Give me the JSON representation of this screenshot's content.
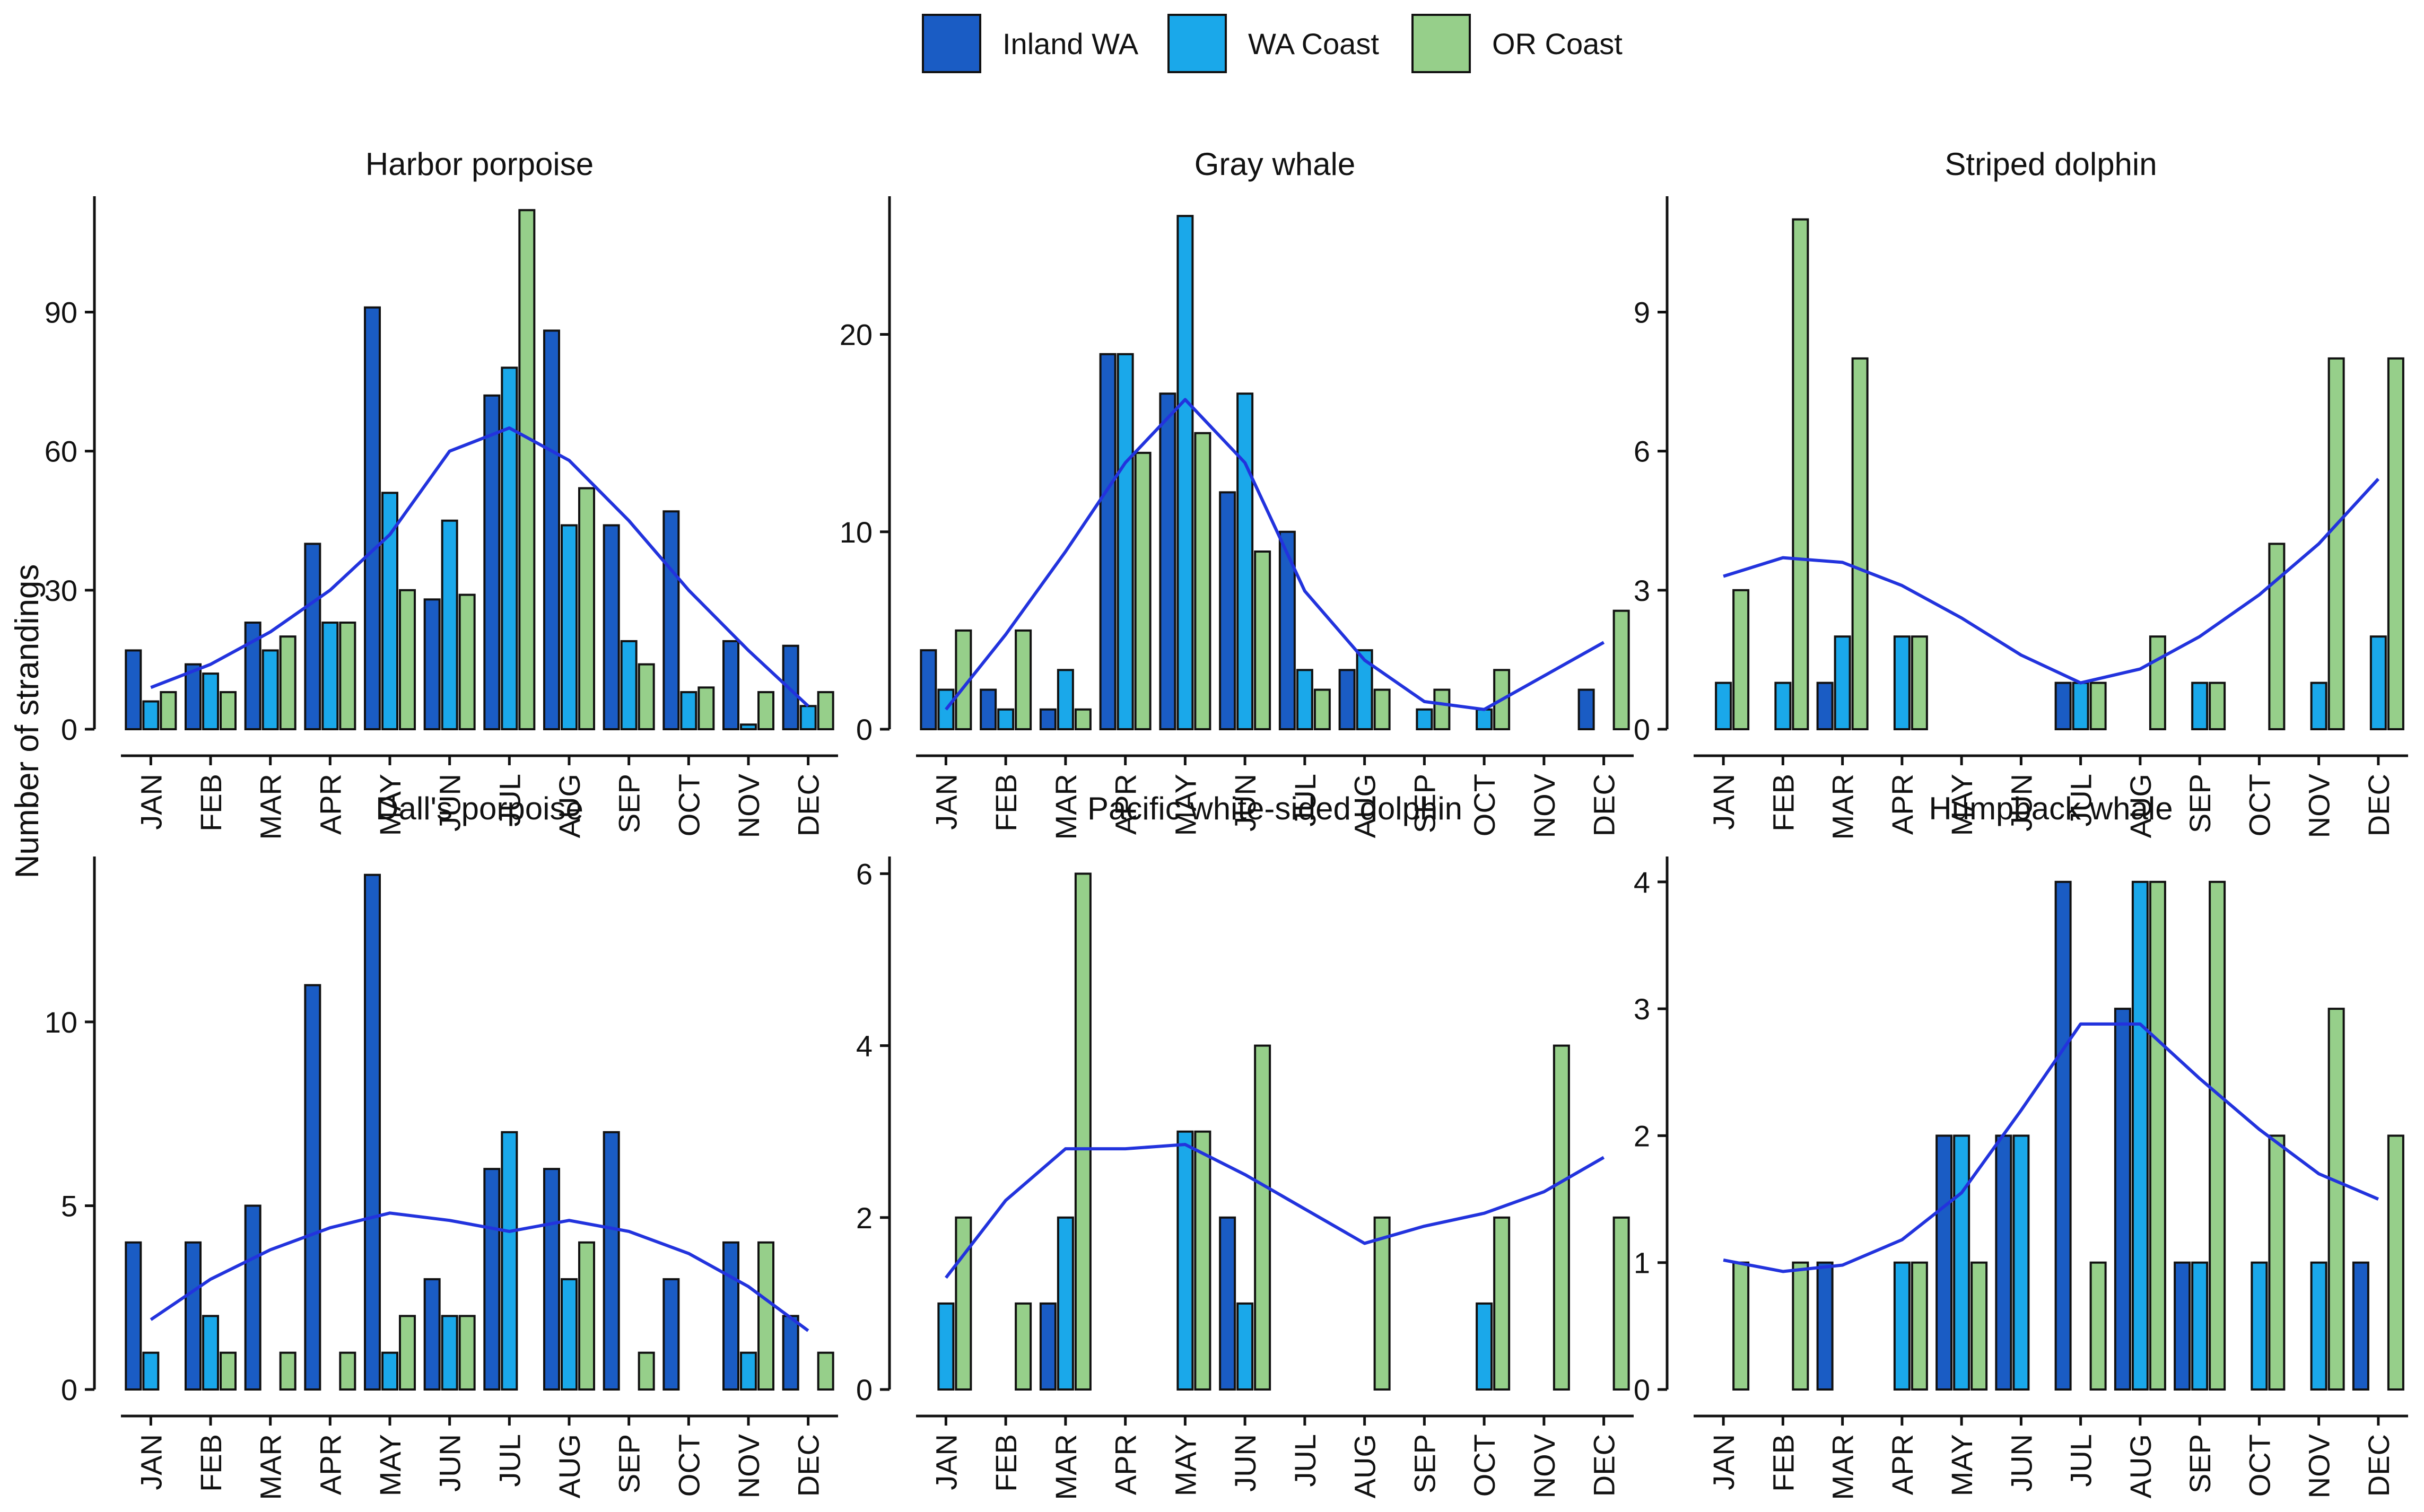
{
  "figure": {
    "ylabel": "Number of strandings",
    "legend_position": "top-center"
  },
  "legend": [
    {
      "name": "Inland WA",
      "color": "#1a5cc4"
    },
    {
      "name": "WA Coast",
      "color": "#1aa8ea"
    },
    {
      "name": "OR Coast",
      "color": "#96cf8a"
    }
  ],
  "colors": {
    "bar_outline": "#111111",
    "trend_line": "#2233dd",
    "axis": "#111111"
  },
  "chart_data": [
    {
      "type": "bar",
      "title": "Harbor porpoise",
      "categories": [
        "JAN",
        "FEB",
        "MAR",
        "APR",
        "MAY",
        "JUN",
        "JUL",
        "AUG",
        "SEP",
        "OCT",
        "NOV",
        "DEC"
      ],
      "ylim": [
        0,
        115
      ],
      "yticks": [
        0,
        30,
        60,
        90
      ],
      "series": [
        {
          "name": "Inland WA",
          "values": [
            17,
            14,
            23,
            40,
            91,
            28,
            72,
            86,
            44,
            47,
            19,
            18
          ]
        },
        {
          "name": "WA Coast",
          "values": [
            6,
            12,
            17,
            23,
            51,
            45,
            78,
            44,
            19,
            8,
            1,
            5
          ]
        },
        {
          "name": "OR Coast",
          "values": [
            8,
            8,
            20,
            23,
            30,
            29,
            112,
            52,
            14,
            9,
            8,
            8
          ]
        }
      ],
      "trend": [
        9,
        14,
        21,
        30,
        42,
        60,
        65,
        58,
        45,
        30,
        17,
        5
      ]
    },
    {
      "type": "bar",
      "title": "Gray whale",
      "categories": [
        "JAN",
        "FEB",
        "MAR",
        "APR",
        "MAY",
        "JUN",
        "JUL",
        "AUG",
        "SEP",
        "OCT",
        "NOV",
        "DEC"
      ],
      "ylim": [
        0,
        27
      ],
      "yticks": [
        0,
        10,
        20
      ],
      "series": [
        {
          "name": "Inland WA",
          "values": [
            4,
            2,
            1,
            19,
            17,
            12,
            10,
            3,
            0,
            0,
            0,
            2
          ]
        },
        {
          "name": "WA Coast",
          "values": [
            2,
            1,
            3,
            19,
            26,
            17,
            3,
            4,
            1,
            1,
            0,
            0
          ]
        },
        {
          "name": "OR Coast",
          "values": [
            5,
            5,
            1,
            14,
            15,
            9,
            2,
            2,
            2,
            3,
            0,
            6
          ]
        }
      ],
      "trend": [
        1,
        4.8,
        9,
        13.5,
        16.7,
        13.5,
        7,
        3.5,
        1.4,
        1,
        2.7,
        4.4
      ]
    },
    {
      "type": "bar",
      "title": "Striped dolphin",
      "categories": [
        "JAN",
        "FEB",
        "MAR",
        "APR",
        "MAY",
        "JUN",
        "JUL",
        "AUG",
        "SEP",
        "OCT",
        "NOV",
        "DEC"
      ],
      "ylim": [
        0,
        11.5
      ],
      "yticks": [
        0,
        3,
        6,
        9
      ],
      "series": [
        {
          "name": "Inland WA",
          "values": [
            0,
            0,
            1,
            0,
            0,
            0,
            1,
            0,
            0,
            0,
            0,
            0
          ]
        },
        {
          "name": "WA Coast",
          "values": [
            1,
            1,
            2,
            2,
            0,
            0,
            1,
            0,
            1,
            0,
            1,
            2
          ]
        },
        {
          "name": "OR Coast",
          "values": [
            3,
            11,
            8,
            2,
            0,
            0,
            1,
            2,
            1,
            4,
            8,
            8
          ]
        }
      ],
      "trend": [
        3.3,
        3.7,
        3.6,
        3.1,
        2.4,
        1.6,
        1,
        1.3,
        2,
        2.9,
        4,
        5.4
      ]
    },
    {
      "type": "bar",
      "title": "Dall's porpoise",
      "categories": [
        "JAN",
        "FEB",
        "MAR",
        "APR",
        "MAY",
        "JUN",
        "JUL",
        "AUG",
        "SEP",
        "OCT",
        "NOV",
        "DEC"
      ],
      "ylim": [
        0,
        14.5
      ],
      "yticks": [
        0,
        5,
        10
      ],
      "series": [
        {
          "name": "Inland WA",
          "values": [
            4,
            4,
            5,
            11,
            14,
            3,
            6,
            6,
            7,
            3,
            4,
            2
          ]
        },
        {
          "name": "WA Coast",
          "values": [
            1,
            2,
            0,
            0,
            1,
            2,
            7,
            3,
            0,
            0,
            1,
            0
          ]
        },
        {
          "name": "OR Coast",
          "values": [
            0,
            1,
            1,
            1,
            2,
            2,
            0,
            4,
            1,
            0,
            4,
            1
          ]
        }
      ],
      "trend": [
        1.9,
        3,
        3.8,
        4.4,
        4.8,
        4.6,
        4.3,
        4.6,
        4.3,
        3.7,
        2.8,
        1.6
      ]
    },
    {
      "type": "bar",
      "title": "Pacific white-sided dolphin",
      "categories": [
        "JAN",
        "FEB",
        "MAR",
        "APR",
        "MAY",
        "JUN",
        "JUL",
        "AUG",
        "SEP",
        "OCT",
        "NOV",
        "DEC"
      ],
      "ylim": [
        0,
        6.2
      ],
      "yticks": [
        0,
        2,
        4,
        6
      ],
      "series": [
        {
          "name": "Inland WA",
          "values": [
            0,
            0,
            1,
            0,
            0,
            2,
            0,
            0,
            0,
            0,
            0,
            0
          ]
        },
        {
          "name": "WA Coast",
          "values": [
            1,
            0,
            2,
            0,
            3,
            1,
            0,
            0,
            0,
            1,
            0,
            0
          ]
        },
        {
          "name": "OR Coast",
          "values": [
            2,
            1,
            6,
            0,
            3,
            4,
            0,
            2,
            0,
            2,
            4,
            2
          ]
        }
      ],
      "trend": [
        1.3,
        2.2,
        2.8,
        2.8,
        2.85,
        2.5,
        2.1,
        1.7,
        1.9,
        2.05,
        2.3,
        2.7
      ]
    },
    {
      "type": "bar",
      "title": "Humpback whale",
      "categories": [
        "JAN",
        "FEB",
        "MAR",
        "APR",
        "MAY",
        "JUN",
        "JUL",
        "AUG",
        "SEP",
        "OCT",
        "NOV",
        "DEC"
      ],
      "ylim": [
        0,
        4.2
      ],
      "yticks": [
        0,
        1,
        2,
        3,
        4
      ],
      "series": [
        {
          "name": "Inland WA",
          "values": [
            0,
            0,
            1,
            0,
            2,
            2,
            4,
            3,
            1,
            0,
            0,
            1
          ]
        },
        {
          "name": "WA Coast",
          "values": [
            0,
            0,
            0,
            1,
            2,
            2,
            0,
            4,
            1,
            1,
            1,
            0
          ]
        },
        {
          "name": "OR Coast",
          "values": [
            1,
            1,
            0,
            1,
            1,
            0,
            1,
            4,
            4,
            2,
            3,
            2
          ]
        }
      ],
      "trend": [
        1.02,
        0.93,
        0.98,
        1.18,
        1.55,
        2.2,
        2.88,
        2.88,
        2.45,
        2.05,
        1.7,
        1.5
      ]
    }
  ]
}
